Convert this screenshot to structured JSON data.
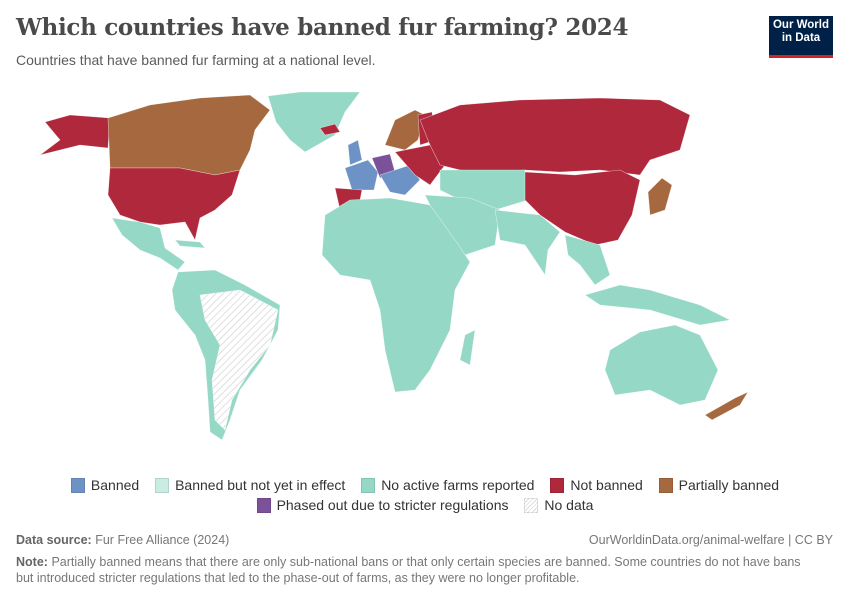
{
  "title": "Which countries have banned fur farming? 2024",
  "subtitle": "Countries that have banned fur farming at a national level.",
  "logo": {
    "line1": "Our World",
    "line2": "in Data"
  },
  "legend": [
    {
      "label": "Banned",
      "color": "#6d93c6"
    },
    {
      "label": "Banned but not yet in effect",
      "color": "#c9ece3"
    },
    {
      "label": "No active farms reported",
      "color": "#96d8c6"
    },
    {
      "label": "Not banned",
      "color": "#b0283b"
    },
    {
      "label": "Partially banned",
      "color": "#a6693f"
    },
    {
      "label": "Phased out due to stricter regulations",
      "color": "#7b519a"
    },
    {
      "label": "No data",
      "color": "hatched"
    }
  ],
  "footer": {
    "source_label": "Data source:",
    "source": "Fur Free Alliance (2024)",
    "url": "OurWorldinData.org/animal-welfare | CC BY",
    "note_label": "Note:",
    "note": "Partially banned means that there are only sub-national bans or that only certain species are banned. Some countries do not have bans but introduced stricter regulations that led to the phase-out of farms, as they were no longer profitable."
  }
}
